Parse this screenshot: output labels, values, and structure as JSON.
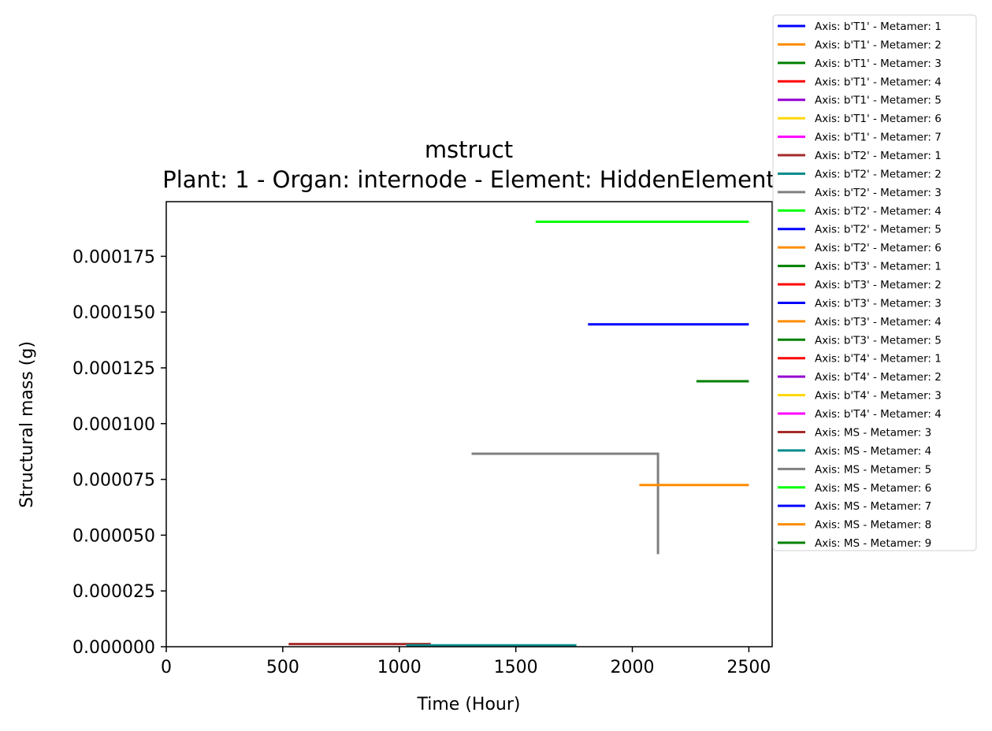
{
  "chart_data": {
    "type": "line",
    "title": "mstruct",
    "subtitle": "Plant: 1 - Organ: internode - Element: HiddenElement",
    "xlabel": "Time (Hour)",
    "ylabel": "Structural mass (g)",
    "xlim": [
      0,
      2600
    ],
    "ylim": [
      0,
      0.0001995
    ],
    "x_ticks": [
      0,
      500,
      1000,
      1500,
      2000,
      2500
    ],
    "x_tick_labels": [
      "0",
      "500",
      "1000",
      "1500",
      "2000",
      "2500"
    ],
    "y_ticks": [
      0,
      2.5e-05,
      5e-05,
      7.5e-05,
      0.0001,
      0.000125,
      0.00015,
      0.000175
    ],
    "y_tick_labels": [
      "0.000000",
      "0.000025",
      "0.000050",
      "0.000075",
      "0.000100",
      "0.000125",
      "0.000150",
      "0.000175"
    ],
    "grid": false,
    "legend_placement": "outside-right",
    "series": [
      {
        "name": "Axis: b'T1' - Metamer: 1",
        "color": "#0000ff",
        "points": []
      },
      {
        "name": "Axis: b'T1' - Metamer: 2",
        "color": "#ff8c00",
        "points": []
      },
      {
        "name": "Axis: b'T1' - Metamer: 3",
        "color": "#008000",
        "points": []
      },
      {
        "name": "Axis: b'T1' - Metamer: 4",
        "color": "#ff0000",
        "points": []
      },
      {
        "name": "Axis: b'T1' - Metamer: 5",
        "color": "#9400d3",
        "points": []
      },
      {
        "name": "Axis: b'T1' - Metamer: 6",
        "color": "#ffd700",
        "points": []
      },
      {
        "name": "Axis: b'T1' - Metamer: 7",
        "color": "#ff00ff",
        "points": []
      },
      {
        "name": "Axis: b'T2' - Metamer: 1",
        "color": "#a52a2a",
        "points": []
      },
      {
        "name": "Axis: b'T2' - Metamer: 2",
        "color": "#008b8b",
        "points": []
      },
      {
        "name": "Axis: b'T2' - Metamer: 3",
        "color": "#808080",
        "points": []
      },
      {
        "name": "Axis: b'T2' - Metamer: 4",
        "color": "#00ff00",
        "points": []
      },
      {
        "name": "Axis: b'T2' - Metamer: 5",
        "color": "#0000ff",
        "points": []
      },
      {
        "name": "Axis: b'T2' - Metamer: 6",
        "color": "#ff8c00",
        "points": []
      },
      {
        "name": "Axis: b'T3' - Metamer: 1",
        "color": "#008000",
        "points": []
      },
      {
        "name": "Axis: b'T3' - Metamer: 2",
        "color": "#ff0000",
        "points": []
      },
      {
        "name": "Axis: b'T3' - Metamer: 3",
        "color": "#0000ff",
        "points": []
      },
      {
        "name": "Axis: b'T3' - Metamer: 4",
        "color": "#ff8c00",
        "points": []
      },
      {
        "name": "Axis: b'T3' - Metamer: 5",
        "color": "#008000",
        "points": []
      },
      {
        "name": "Axis: b'T4' - Metamer: 1",
        "color": "#ff0000",
        "points": []
      },
      {
        "name": "Axis: b'T4' - Metamer: 2",
        "color": "#9400d3",
        "points": []
      },
      {
        "name": "Axis: b'T4' - Metamer: 3",
        "color": "#ffd700",
        "points": []
      },
      {
        "name": "Axis: b'T4' - Metamer: 4",
        "color": "#ff00ff",
        "points": []
      },
      {
        "name": "Axis: MS - Metamer: 3",
        "color": "#a52a2a",
        "points": [
          [
            525,
            1.2e-06
          ],
          [
            1135,
            1.2e-06
          ]
        ]
      },
      {
        "name": "Axis: MS - Metamer: 4",
        "color": "#008b8b",
        "points": [
          [
            1030,
            6e-07
          ],
          [
            1760,
            6e-07
          ]
        ]
      },
      {
        "name": "Axis: MS - Metamer: 5",
        "color": "#808080",
        "points": [
          [
            1310,
            8.65e-05
          ],
          [
            2110,
            8.65e-05
          ],
          [
            2110,
            4.15e-05
          ]
        ]
      },
      {
        "name": "Axis: MS - Metamer: 6",
        "color": "#00ff00",
        "points": [
          [
            1585,
            0.0001905
          ],
          [
            2500,
            0.0001905
          ]
        ]
      },
      {
        "name": "Axis: MS - Metamer: 7",
        "color": "#0000ff",
        "points": [
          [
            1810,
            0.0001445
          ],
          [
            2500,
            0.0001445
          ]
        ]
      },
      {
        "name": "Axis: MS - Metamer: 8",
        "color": "#ff8c00",
        "points": [
          [
            2030,
            7.25e-05
          ],
          [
            2500,
            7.25e-05
          ]
        ]
      },
      {
        "name": "Axis: MS - Metamer: 9",
        "color": "#008000",
        "points": [
          [
            2275,
            0.000119
          ],
          [
            2500,
            0.000119
          ]
        ]
      }
    ]
  }
}
